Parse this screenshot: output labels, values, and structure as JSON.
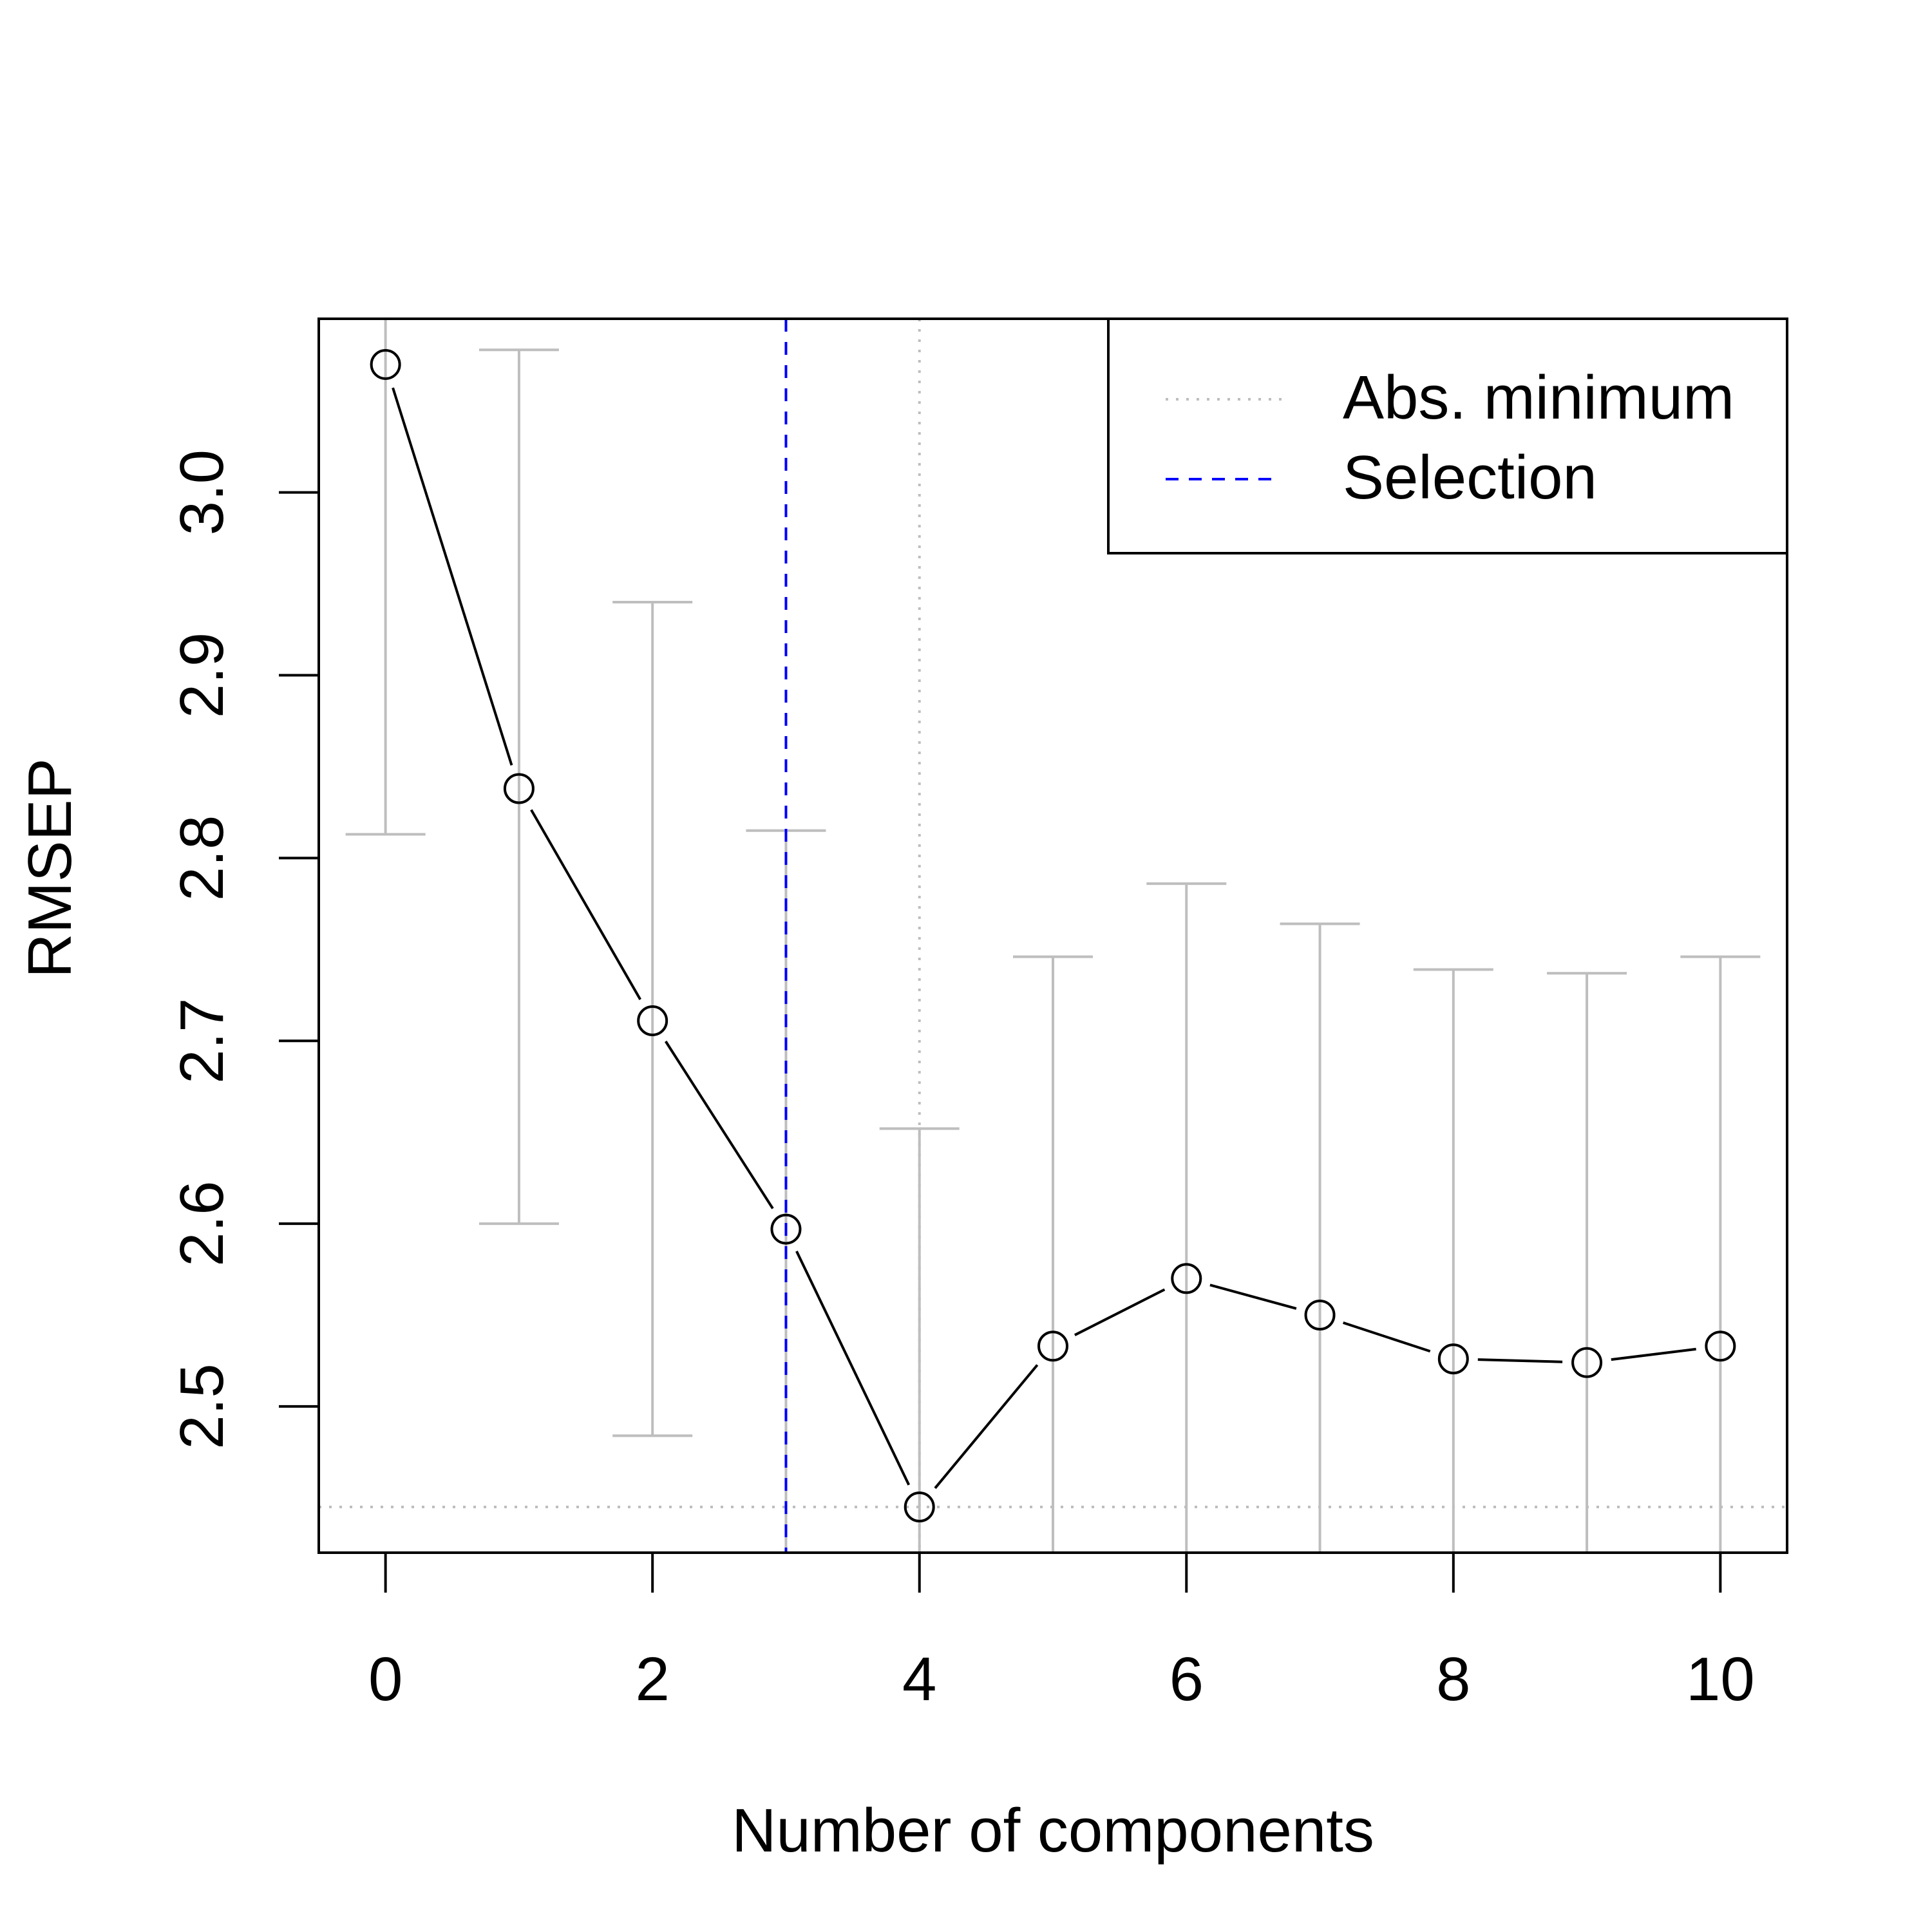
{
  "chart_data": {
    "type": "line",
    "title": "",
    "xlabel": "Number of components",
    "ylabel": "RMSEP",
    "x": [
      0,
      1,
      2,
      3,
      4,
      5,
      6,
      7,
      8,
      9,
      10
    ],
    "y": [
      3.07,
      2.838,
      2.711,
      2.597,
      2.445,
      2.533,
      2.57,
      2.55,
      2.526,
      2.524,
      2.533
    ],
    "error_bars": {
      "upper": [
        3.11,
        3.078,
        2.94,
        2.815,
        2.652,
        2.746,
        2.786,
        2.764,
        2.739,
        2.737,
        2.746
      ],
      "lower": [
        2.813,
        2.6,
        2.484,
        null,
        null,
        null,
        null,
        null,
        null,
        null,
        null
      ]
    },
    "xlim": [
      -0.5,
      10.5
    ],
    "ylim": [
      2.42,
      3.095
    ],
    "xticks": [
      "0",
      "2",
      "4",
      "6",
      "8",
      "10"
    ],
    "yticks": [
      "2.5",
      "2.6",
      "2.7",
      "2.8",
      "2.9",
      "3.0"
    ],
    "abs_minimum": {
      "x": 4,
      "y": 2.445
    },
    "selection": {
      "x": 3
    },
    "legend": {
      "position": "top-right",
      "entries": [
        {
          "label": "Abs. minimum",
          "style": "dotted",
          "color": "#BEBEBE"
        },
        {
          "label": "Selection",
          "style": "dashed",
          "color": "#0000FF"
        }
      ]
    },
    "colors": {
      "line": "#000000",
      "errorbar": "#BEBEBE",
      "selection": "#0000FF",
      "abs_minimum": "#BEBEBE"
    }
  }
}
